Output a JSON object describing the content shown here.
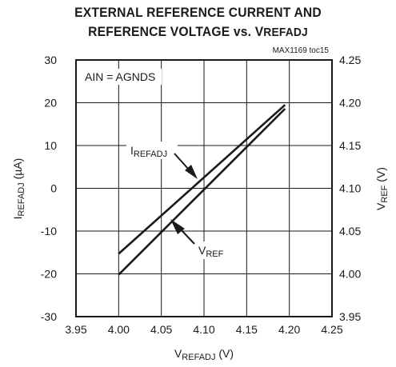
{
  "title_line1": "EXTERNAL REFERENCE CURRENT AND",
  "title_line2": "REFERENCE VOLTAGE vs. V",
  "title_line2_sub": "REFADJ",
  "toc": "MAX1169 toc15",
  "condition": "AIN = AGNDS",
  "chart_data": {
    "type": "line",
    "title": "EXTERNAL REFERENCE CURRENT AND REFERENCE VOLTAGE vs. VREFADJ",
    "xlabel": "V",
    "xlabel_sub": "REFADJ",
    "xlabel_unit": " (V)",
    "ylabel": "I",
    "ylabel_sub": "REFADJ",
    "ylabel_unit": " (µA)",
    "y2label": "V",
    "y2label_sub": "REF",
    "y2label_unit": " (V)",
    "xlim": [
      3.95,
      4.25
    ],
    "ylim": [
      -30,
      30
    ],
    "y2lim": [
      3.95,
      4.25
    ],
    "xticks": [
      "3.95",
      "4.00",
      "4.05",
      "4.10",
      "4.15",
      "4.20",
      "4.25"
    ],
    "yticks": [
      "30",
      "20",
      "10",
      "0",
      "-10",
      "-20",
      "-30"
    ],
    "y2ticks": [
      "4.25",
      "4.20",
      "4.15",
      "4.10",
      "4.05",
      "4.00",
      "3.95"
    ],
    "grid": true,
    "series": [
      {
        "name": "IREFADJ",
        "axis": "left",
        "x": [
          4.0,
          4.195
        ],
        "y": [
          -15.3,
          19.5
        ]
      },
      {
        "name": "VREF",
        "axis": "right",
        "x": [
          4.0,
          4.195
        ],
        "y": [
          3.999,
          4.193
        ]
      }
    ],
    "annotations": [
      {
        "label": "I",
        "sub": "REFADJ",
        "series": "IREFADJ"
      },
      {
        "label": "V",
        "sub": "REF",
        "series": "VREF"
      }
    ]
  }
}
